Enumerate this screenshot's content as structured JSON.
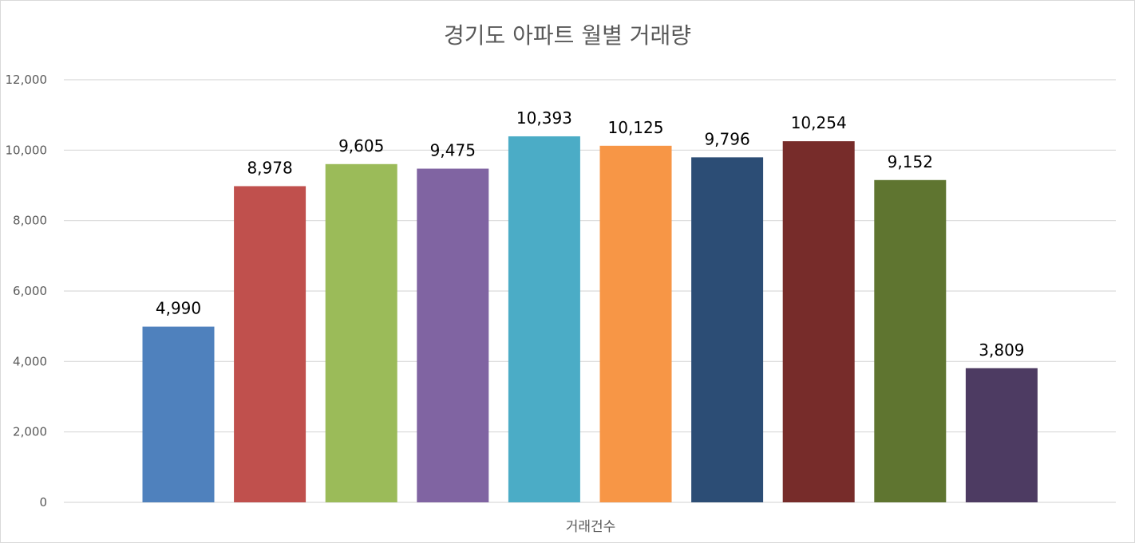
{
  "chart_data": {
    "type": "bar",
    "title": "경기도 아파트 월별 거래량",
    "categories": [
      "거래건수"
    ],
    "series": [
      {
        "value": 4990,
        "label": "4,990",
        "color": "#4f81bd"
      },
      {
        "value": 8978,
        "label": "8,978",
        "color": "#c0504d"
      },
      {
        "value": 9605,
        "label": "9,605",
        "color": "#9bbb59"
      },
      {
        "value": 9475,
        "label": "9,475",
        "color": "#8064a2"
      },
      {
        "value": 10393,
        "label": "10,393",
        "color": "#4bacc6"
      },
      {
        "value": 10125,
        "label": "10,125",
        "color": "#f79646"
      },
      {
        "value": 9796,
        "label": "9,796",
        "color": "#2c4d75"
      },
      {
        "value": 10254,
        "label": "10,254",
        "color": "#772c2a"
      },
      {
        "value": 9152,
        "label": "9,152",
        "color": "#5f7530"
      },
      {
        "value": 3809,
        "label": "3,809",
        "color": "#4d3b62"
      }
    ],
    "ylim": [
      0,
      12000
    ],
    "yticks": [
      {
        "value": 0,
        "label": "0"
      },
      {
        "value": 2000,
        "label": "2,000"
      },
      {
        "value": 4000,
        "label": "4,000"
      },
      {
        "value": 6000,
        "label": "6,000"
      },
      {
        "value": 8000,
        "label": "8,000"
      },
      {
        "value": 10000,
        "label": "10,000"
      },
      {
        "value": 12000,
        "label": "12,000"
      }
    ],
    "grid": true,
    "legend": "none",
    "gridline_color": "#d9d9d9"
  }
}
